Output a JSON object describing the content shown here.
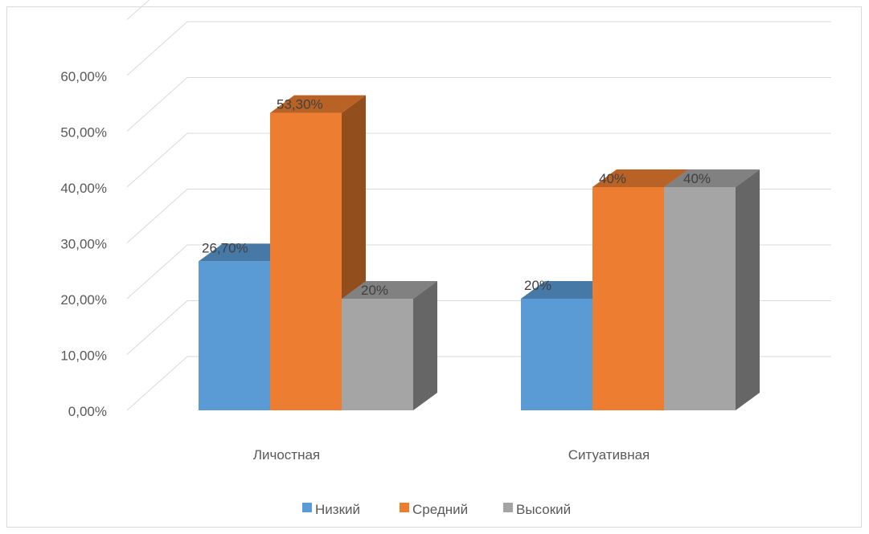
{
  "chart_data": {
    "type": "bar",
    "title": "",
    "xlabel": "",
    "ylabel": "",
    "categories": [
      "Личостная",
      "Ситуативная"
    ],
    "series": [
      {
        "name": "Низкий",
        "values": [
          26.7,
          20
        ],
        "labels": [
          "26,70%",
          "20%"
        ],
        "color": "#5b9bd5"
      },
      {
        "name": "Средний",
        "values": [
          53.3,
          40
        ],
        "labels": [
          "53,30%",
          "40%"
        ],
        "color": "#ed7d31"
      },
      {
        "name": "Высокий",
        "values": [
          20,
          40
        ],
        "labels": [
          "20%",
          "40%"
        ],
        "color": "#a5a5a5"
      }
    ],
    "ylim": [
      0,
      70
    ],
    "yticks": [
      0,
      10,
      20,
      30,
      40,
      50,
      60
    ],
    "ytick_labels": [
      "0,00%",
      "10,00%",
      "20,00%",
      "30,00%",
      "40,00%",
      "50,00%",
      "60,00%"
    ],
    "style": "3d-clustered-column",
    "grid": true,
    "legend_position": "bottom"
  }
}
